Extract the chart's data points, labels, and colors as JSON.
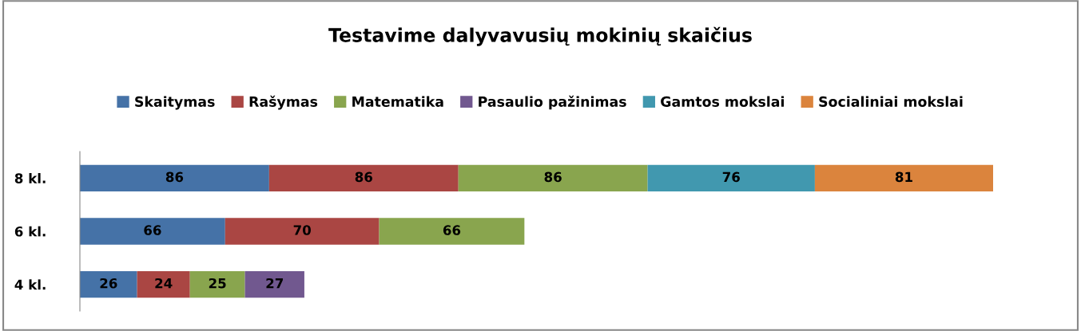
{
  "chart_data": {
    "type": "bar",
    "orientation": "horizontal",
    "stacked": true,
    "title": "Testavime dalyvavusių mokinių skaičius",
    "categories": [
      "8 kl.",
      "6 kl.",
      "4 kl."
    ],
    "series": [
      {
        "name": "Skaitymas",
        "color": "#4572a7",
        "values": [
          86,
          66,
          26
        ]
      },
      {
        "name": "Rašymas",
        "color": "#aa4643",
        "values": [
          86,
          70,
          24
        ]
      },
      {
        "name": "Matematika",
        "color": "#89a54e",
        "values": [
          86,
          66,
          25
        ]
      },
      {
        "name": "Pasaulio pažinimas",
        "color": "#71588f",
        "values": [
          null,
          null,
          27
        ]
      },
      {
        "name": "Gamtos mokslai",
        "color": "#4198af",
        "values": [
          76,
          null,
          null
        ]
      },
      {
        "name": "Socialiniai mokslai",
        "color": "#db843d",
        "values": [
          81,
          null,
          null
        ]
      }
    ],
    "data_labels": true,
    "legend": "top",
    "grid": false,
    "tick_labels": "y"
  }
}
